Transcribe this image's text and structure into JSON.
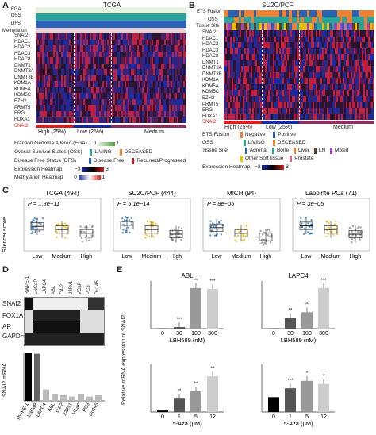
{
  "panelA": {
    "label": "A",
    "title": "TCGA",
    "track_labels": [
      "FGA",
      "OSS",
      "DFS",
      "Methylation"
    ],
    "genes": [
      "SNAI2",
      "HDAC1",
      "HDAC2",
      "HDAC3",
      "HDAC8",
      "DNMT1",
      "DNMT3A",
      "DNMT3B",
      "KDM1A",
      "KDM5A",
      "KDM5C",
      "EZH2",
      "PRMT5",
      "ERG",
      "FOXA1"
    ],
    "bottom_gene": "SNAI2",
    "groups": [
      "High (25%)",
      "Low (25%)",
      "Medium"
    ],
    "legend": [
      {
        "label": "Fraction Genome Altered (FGA)",
        "ticks": [
          "0",
          "1"
        ]
      },
      {
        "label": "Overall Survival Status (OSS)",
        "items": [
          "LIVING",
          "DECEASED"
        ]
      },
      {
        "label": "Disease Free Status (DFS)",
        "items": [
          "Disease Free",
          "Recurred/Progressed"
        ]
      },
      {
        "label": "Expression Heatmap",
        "range": [
          "−3",
          "3"
        ]
      },
      {
        "label": "Methylation Heatmap",
        "range": [
          "0",
          "1"
        ]
      }
    ]
  },
  "panelB": {
    "label": "B",
    "title": "SU2C/PCF",
    "track_labels": [
      "ETS Fusion",
      "OSS",
      "Tissue Site"
    ],
    "genes": [
      "SNAI2",
      "HDAC1",
      "HDAC2",
      "HDAC3",
      "HDAC8",
      "DNMT1",
      "DNMT3A",
      "DNMT3B",
      "KDM1A",
      "KDM5A",
      "KDM5C",
      "EZH2",
      "PRMT5",
      "ERG",
      "FOXA1"
    ],
    "bottom_gene": "SNAI2",
    "groups": [
      "High (25%)",
      "Low (25%)",
      "Medium"
    ],
    "legend": [
      {
        "label": "ETS Fusion",
        "items": [
          "Negative",
          "Positive"
        ]
      },
      {
        "label": "OSS",
        "items": [
          "LIVING",
          "DECEASED"
        ]
      },
      {
        "label": "Tissue Site",
        "items": [
          "Adrenal",
          "Bone",
          "Liver",
          "LN",
          "Mixed",
          "Other Soft tissue",
          "Prostate"
        ]
      },
      {
        "label": "Expression Heatmap",
        "range": [
          "−3",
          "3"
        ]
      }
    ]
  },
  "panelC": {
    "label": "C",
    "ylabel": "Silencer score",
    "yticks": [
      "1.0",
      "0.5",
      "0",
      "−0.5",
      "−1.0"
    ],
    "plots": [
      {
        "title": "TCGA (494)",
        "p": "P = 1.3e−11",
        "xlabel": "SNAI2 mRNA",
        "cats": [
          "Low",
          "Medium",
          "High"
        ]
      },
      {
        "title": "SU2C/PCF (444)",
        "p": "P = 5.1e−14",
        "xlabel": "SNAI2 mRNA",
        "cats": [
          "Low",
          "Medium",
          "High"
        ]
      },
      {
        "title": "MICH (94)",
        "p": "P = 8e−05",
        "xlabel": "SNAI2 mRNA",
        "cats": [
          "Low",
          "Medium",
          "High"
        ]
      },
      {
        "title": "Lapointe PCa (71)",
        "p": "P = 3e−05",
        "xlabel": "SNAI2 mRNA",
        "cats": [
          "Low",
          "Medium",
          "High"
        ]
      }
    ]
  },
  "panelD": {
    "label": "D",
    "cell_lines": [
      "RWPE-1",
      "LNCaP",
      "LAPC4",
      "ABL",
      "C4-2",
      "22Rv1",
      "VCaP",
      "PC3",
      "Du145"
    ],
    "blots": [
      "SNAI2",
      "FOX1A",
      "AR",
      "GAPDH"
    ],
    "ylabel": "SNAI2 mRNA"
  },
  "panelE": {
    "label": "E",
    "ylabel": "Relative mRNA expression of SNAI2",
    "plots": [
      {
        "title": "ABL",
        "xlabel": "LBH589 (nM)",
        "cats": [
          "0",
          "30",
          "100",
          "300"
        ],
        "sig": [
          "",
          "***",
          "***",
          "***"
        ]
      },
      {
        "title": "LAPC4",
        "xlabel": "LBH589 (nM)",
        "cats": [
          "0",
          "30",
          "100",
          "300"
        ],
        "sig": [
          "",
          "**",
          "***",
          "***"
        ]
      },
      {
        "title": "",
        "xlabel": "5-Aza (μM)",
        "cats": [
          "0",
          "1",
          "5",
          "12"
        ],
        "sig": [
          "",
          "**",
          "**",
          "**"
        ]
      },
      {
        "title": "",
        "xlabel": "5-Aza (μM)",
        "cats": [
          "0",
          "1",
          "5",
          "12"
        ],
        "sig": [
          "",
          "***",
          "*",
          "*"
        ]
      }
    ]
  },
  "colors": {
    "high": "#d62020",
    "low": "#1a2a9a",
    "teal": "#2aa39a",
    "gold": "#e6b800",
    "gray": "#7a7a7a",
    "blue": "#1d6fb8"
  }
}
